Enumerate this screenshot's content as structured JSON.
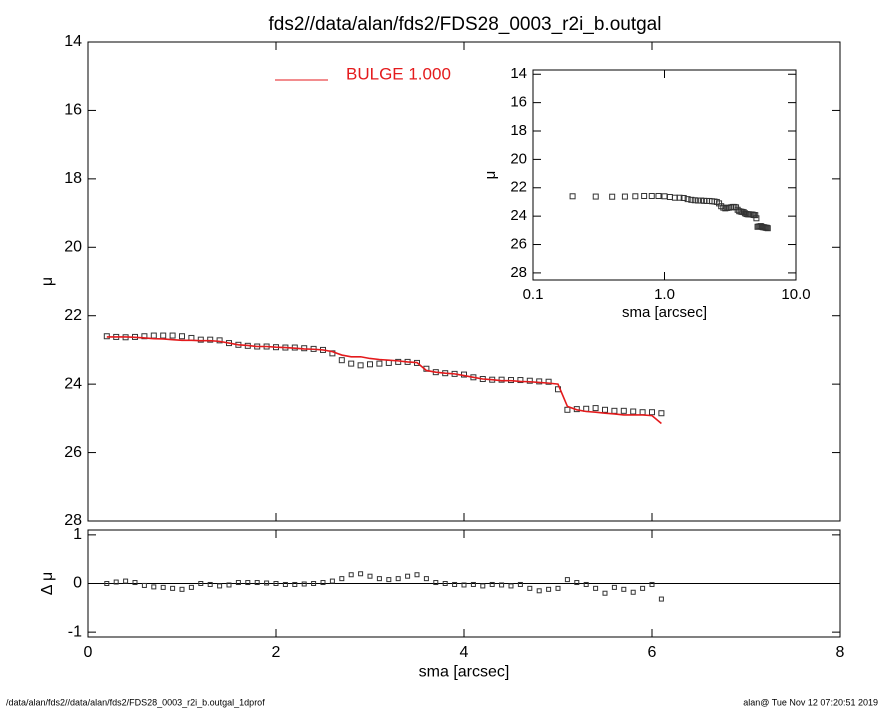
{
  "chart_data": [
    {
      "type": "scatter",
      "title": "fds2//data/alan/fds2/FDS28_0003_r2i_b.outgal",
      "ylabel": "μ",
      "x": [
        0.2,
        0.3,
        0.4,
        0.5,
        0.6,
        0.7,
        0.8,
        0.9,
        1.0,
        1.1,
        1.2,
        1.3,
        1.4,
        1.5,
        1.6,
        1.7,
        1.8,
        1.9,
        2.0,
        2.1,
        2.2,
        2.3,
        2.4,
        2.5,
        2.6,
        2.7,
        2.8,
        2.9,
        3.0,
        3.1,
        3.2,
        3.3,
        3.4,
        3.5,
        3.6,
        3.7,
        3.8,
        3.9,
        4.0,
        4.1,
        4.2,
        4.3,
        4.4,
        4.5,
        4.6,
        4.7,
        4.8,
        4.9,
        5.0,
        5.1,
        5.2,
        5.3,
        5.4,
        5.5,
        5.6,
        5.7,
        5.8,
        5.9,
        6.0,
        6.1
      ],
      "xlim": [
        0,
        8
      ],
      "xticks": [
        0,
        2,
        4,
        6,
        8
      ],
      "ylim": [
        28,
        14
      ],
      "yticks": [
        14,
        16,
        18,
        20,
        22,
        24,
        26,
        28
      ],
      "series": [
        {
          "color": "#333333",
          "style": "markers",
          "values": [
            22.6,
            22.62,
            22.63,
            22.62,
            22.6,
            22.58,
            22.58,
            22.58,
            22.6,
            22.65,
            22.7,
            22.7,
            22.72,
            22.8,
            22.85,
            22.88,
            22.9,
            22.9,
            22.92,
            22.93,
            22.93,
            22.95,
            22.97,
            23.0,
            23.1,
            23.3,
            23.4,
            23.45,
            23.42,
            23.4,
            23.38,
            23.35,
            23.35,
            23.38,
            23.55,
            23.65,
            23.68,
            23.7,
            23.72,
            23.8,
            23.85,
            23.87,
            23.87,
            23.88,
            23.88,
            23.9,
            23.92,
            23.93,
            24.15,
            24.75,
            24.73,
            24.72,
            24.7,
            24.75,
            24.78,
            24.78,
            24.8,
            24.82,
            24.82,
            24.85
          ]
        },
        {
          "name": "BULGE  1.000",
          "color": "#e41a1c",
          "style": "line",
          "values": [
            22.62,
            22.62,
            22.62,
            22.63,
            22.65,
            22.67,
            22.68,
            22.7,
            22.72,
            22.72,
            22.73,
            22.73,
            22.75,
            22.8,
            22.85,
            22.87,
            22.9,
            22.9,
            22.92,
            22.93,
            22.95,
            22.97,
            22.98,
            23.0,
            23.05,
            23.15,
            23.2,
            23.2,
            23.25,
            23.28,
            23.3,
            23.32,
            23.35,
            23.37,
            23.6,
            23.65,
            23.68,
            23.7,
            23.75,
            23.8,
            23.85,
            23.87,
            23.9,
            23.9,
            23.92,
            23.93,
            23.95,
            23.97,
            24.0,
            24.65,
            24.75,
            24.8,
            24.82,
            24.85,
            24.87,
            24.9,
            24.9,
            24.9,
            24.92,
            25.15
          ]
        }
      ]
    },
    {
      "type": "scatter",
      "xlabel": "sma [arcsec]",
      "ylabel": "μ",
      "log_x": true,
      "x": [
        0.2,
        0.3,
        0.4,
        0.5,
        0.6,
        0.7,
        0.8,
        0.9,
        1.0,
        1.1,
        1.2,
        1.3,
        1.4,
        1.5,
        1.6,
        1.7,
        1.8,
        1.9,
        2.0,
        2.1,
        2.2,
        2.3,
        2.4,
        2.5,
        2.6,
        2.7,
        2.8,
        2.9,
        3.0,
        3.1,
        3.2,
        3.3,
        3.4,
        3.5,
        3.6,
        3.7,
        3.8,
        3.9,
        4.0,
        4.1,
        4.2,
        4.3,
        4.4,
        4.5,
        4.6,
        4.7,
        4.8,
        4.9,
        5.0,
        5.1,
        5.2,
        5.3,
        5.4,
        5.5,
        5.6,
        5.7,
        5.8,
        5.9,
        6.0,
        6.1
      ],
      "xlim": [
        0.1,
        10
      ],
      "xticks": [
        {
          "value": 0.1,
          "label": "0.1"
        },
        {
          "value": 1,
          "label": "1.0"
        },
        {
          "value": 10,
          "label": "10.0"
        }
      ],
      "ylim": [
        28.5,
        13.7
      ],
      "yticks": [
        14,
        16,
        18,
        20,
        22,
        24,
        26,
        28
      ],
      "series": [
        {
          "color": "#333333",
          "style": "markers",
          "values": [
            22.6,
            22.62,
            22.63,
            22.62,
            22.6,
            22.58,
            22.58,
            22.58,
            22.6,
            22.65,
            22.7,
            22.7,
            22.72,
            22.8,
            22.85,
            22.88,
            22.9,
            22.9,
            22.92,
            22.93,
            22.93,
            22.95,
            22.97,
            23.0,
            23.1,
            23.3,
            23.4,
            23.45,
            23.42,
            23.4,
            23.38,
            23.35,
            23.35,
            23.38,
            23.55,
            23.65,
            23.68,
            23.7,
            23.72,
            23.8,
            23.85,
            23.87,
            23.87,
            23.88,
            23.88,
            23.9,
            23.92,
            23.93,
            24.15,
            24.75,
            24.73,
            24.72,
            24.7,
            24.75,
            24.78,
            24.78,
            24.8,
            24.82,
            24.82,
            24.85
          ]
        }
      ]
    },
    {
      "type": "scatter",
      "xlabel": "sma [arcsec]",
      "ylabel": "Δ μ",
      "zero_line": true,
      "x": [
        0.2,
        0.3,
        0.4,
        0.5,
        0.6,
        0.7,
        0.8,
        0.9,
        1.0,
        1.1,
        1.2,
        1.3,
        1.4,
        1.5,
        1.6,
        1.7,
        1.8,
        1.9,
        2.0,
        2.1,
        2.2,
        2.3,
        2.4,
        2.5,
        2.6,
        2.7,
        2.8,
        2.9,
        3.0,
        3.1,
        3.2,
        3.3,
        3.4,
        3.5,
        3.6,
        3.7,
        3.8,
        3.9,
        4.0,
        4.1,
        4.2,
        4.3,
        4.4,
        4.5,
        4.6,
        4.7,
        4.8,
        4.9,
        5.0,
        5.1,
        5.2,
        5.3,
        5.4,
        5.5,
        5.6,
        5.7,
        5.8,
        5.9,
        6.0,
        6.1
      ],
      "xlim": [
        0,
        8
      ],
      "xticks": [
        0,
        2,
        4,
        6,
        8
      ],
      "ylim": [
        -1.1,
        1.1
      ],
      "yticks": [
        -1,
        0,
        1
      ],
      "series": [
        {
          "color": "#333333",
          "style": "markers",
          "values": [
            0,
            0.03,
            0.05,
            0.02,
            -0.04,
            -0.07,
            -0.08,
            -0.1,
            -0.12,
            -0.08,
            0,
            -0.02,
            -0.05,
            -0.03,
            0.02,
            0.02,
            0.02,
            0.01,
            0,
            -0.02,
            -0.02,
            -0.01,
            0,
            0.02,
            0.05,
            0.1,
            0.18,
            0.2,
            0.15,
            0.1,
            0.08,
            0.1,
            0.15,
            0.18,
            0.1,
            0.02,
            0,
            -0.02,
            -0.03,
            -0.02,
            -0.05,
            -0.02,
            -0.03,
            -0.05,
            -0.02,
            -0.1,
            -0.15,
            -0.12,
            -0.1,
            0.08,
            0.02,
            -0.02,
            -0.1,
            -0.2,
            -0.08,
            -0.12,
            -0.18,
            -0.1,
            -0.02,
            -0.32
          ]
        }
      ]
    }
  ],
  "footer": {
    "left": "/data/alan/fds2//data/alan/fds2/FDS28_0003_r2i_b.outgal_1dprof",
    "right": "alan@  Tue Nov 12 07:20:51 2019"
  }
}
